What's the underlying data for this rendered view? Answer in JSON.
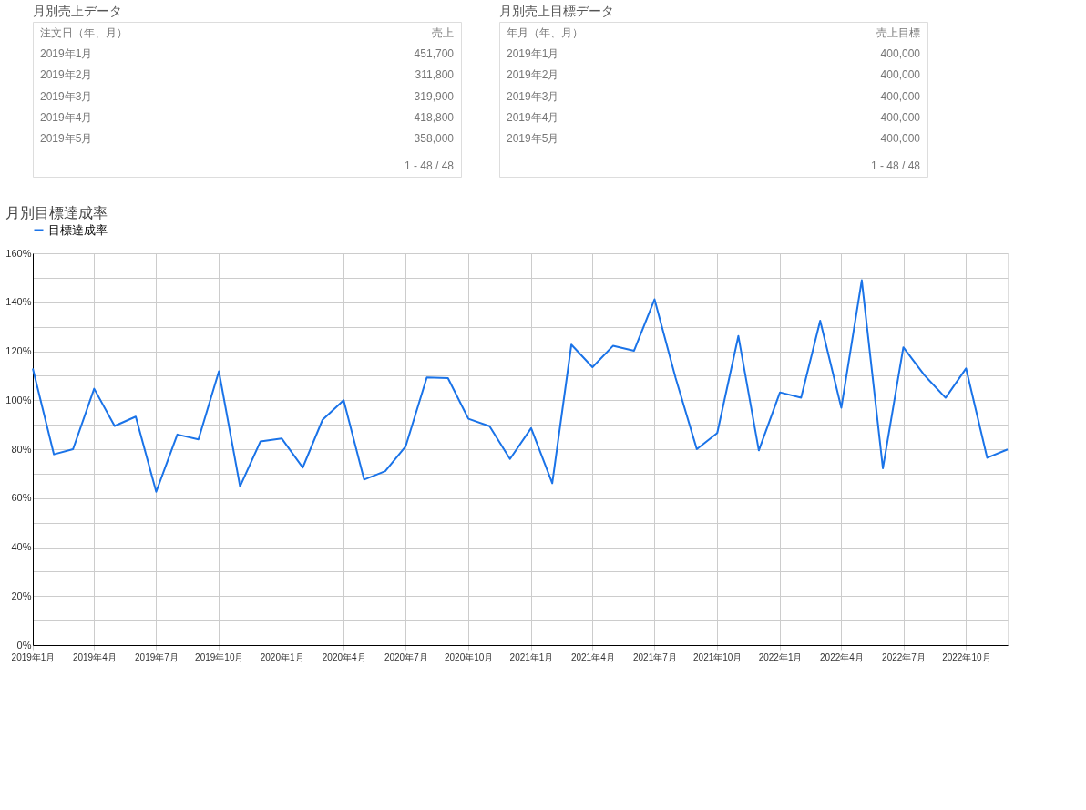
{
  "chart_data": [
    {
      "type": "other",
      "title": "月別売上データ",
      "annotations": [
        "注文日（年、月）",
        "売上",
        "2019年1月",
        "451,700",
        "2019年2月",
        "311,800",
        "2019年3月",
        "319,900",
        "2019年4月",
        "418,800",
        "2019年5月",
        "358,000",
        "1 - 48 / 48"
      ]
    },
    {
      "type": "other",
      "title": "月別売上目標データ",
      "annotations": [
        "年月（年、月）",
        "売上目標",
        "2019年1月",
        "400,000",
        "2019年2月",
        "400,000",
        "2019年3月",
        "400,000",
        "2019年4月",
        "400,000",
        "2019年5月",
        "400,000",
        "1 - 48 / 48"
      ]
    },
    {
      "type": "line",
      "title": "月別目標達成率",
      "x": [
        "2019-01",
        "2019-02",
        "2019-03",
        "2019-04",
        "2019-05",
        "2019-06",
        "2019-07",
        "2019-08",
        "2019-09",
        "2019-10",
        "2019-11",
        "2019-12",
        "2020-01",
        "2020-02",
        "2020-03",
        "2020-04",
        "2020-05",
        "2020-06",
        "2020-07",
        "2020-08",
        "2020-09",
        "2020-10",
        "2020-11",
        "2020-12",
        "2021-01",
        "2021-02",
        "2021-03",
        "2021-04",
        "2021-05",
        "2021-06",
        "2021-07",
        "2021-08",
        "2021-09",
        "2021-10",
        "2021-11",
        "2021-12",
        "2022-01",
        "2022-02",
        "2022-03",
        "2022-04",
        "2022-05",
        "2022-06",
        "2022-07",
        "2022-08",
        "2022-09",
        "2022-10",
        "2022-11",
        "2022-12"
      ],
      "series": [
        {
          "name": "目標達成率",
          "color": "#1a73e8",
          "values": [
            112.9,
            77.9,
            80.0,
            104.7,
            89.5,
            93.3,
            62.6,
            86,
            84,
            111.8,
            64.8,
            83.2,
            84.4,
            72.5,
            92,
            100,
            67.6,
            71,
            81.2,
            109.3,
            109,
            92.4,
            89.4,
            76,
            88.6,
            66.1,
            122.7,
            113.5,
            122.2,
            120.2,
            141.2,
            109,
            80,
            86.6,
            126.2,
            79.5,
            103.2,
            101,
            132.5,
            96.9,
            149,
            72.2,
            121.6,
            110.2,
            101,
            113,
            76.5,
            79.9
          ]
        }
      ],
      "xlim": [
        "2019-01",
        "2022-12"
      ],
      "xticks": [
        {
          "value": "2019-01",
          "label": "2019年1月"
        },
        {
          "value": "2019-04",
          "label": "2019年4月"
        },
        {
          "value": "2019-07",
          "label": "2019年7月"
        },
        {
          "value": "2019-10",
          "label": "2019年10月"
        },
        {
          "value": "2020-01",
          "label": "2020年1月"
        },
        {
          "value": "2020-04",
          "label": "2020年4月"
        },
        {
          "value": "2020-07",
          "label": "2020年7月"
        },
        {
          "value": "2020-10",
          "label": "2020年10月"
        },
        {
          "value": "2021-01",
          "label": "2021年1月"
        },
        {
          "value": "2021-04",
          "label": "2021年4月"
        },
        {
          "value": "2021-07",
          "label": "2021年7月"
        },
        {
          "value": "2021-10",
          "label": "2021年10月"
        },
        {
          "value": "2022-01",
          "label": "2022年1月"
        },
        {
          "value": "2022-04",
          "label": "2022年4月"
        },
        {
          "value": "2022-07",
          "label": "2022年7月"
        },
        {
          "value": "2022-10",
          "label": "2022年10月"
        }
      ],
      "ylim": [
        0,
        160
      ],
      "yticks": [
        {
          "value": 0,
          "label": "0%"
        },
        {
          "value": 10,
          "label": null
        },
        {
          "value": 20,
          "label": "20%"
        },
        {
          "value": 30,
          "label": null
        },
        {
          "value": 40,
          "label": "40%"
        },
        {
          "value": 50,
          "label": null
        },
        {
          "value": 60,
          "label": "60%"
        },
        {
          "value": 70,
          "label": null
        },
        {
          "value": 80,
          "label": "80%"
        },
        {
          "value": 90,
          "label": null
        },
        {
          "value": 100,
          "label": "100%"
        },
        {
          "value": 110,
          "label": null
        },
        {
          "value": 120,
          "label": "120%"
        },
        {
          "value": 130,
          "label": null
        },
        {
          "value": 140,
          "label": "140%"
        },
        {
          "value": 150,
          "label": null
        },
        {
          "value": 160,
          "label": "160%"
        }
      ],
      "grid": true,
      "legend": "top left",
      "marker": "none",
      "line_style": "solid"
    }
  ]
}
